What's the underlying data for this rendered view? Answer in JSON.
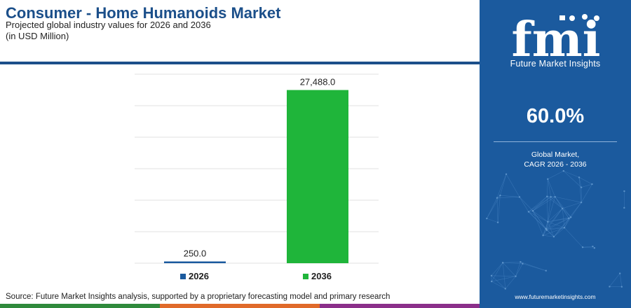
{
  "header": {
    "title": "Consumer - Home Humanoids Market",
    "subtitle_line1": "Projected global industry values for 2026 and 2036",
    "subtitle_line2": "(in USD Million)"
  },
  "chart_data": {
    "type": "bar",
    "categories": [
      "2026",
      "2036"
    ],
    "values": [
      250.0,
      27488.0
    ],
    "data_labels": [
      "250.0",
      "27,488.0"
    ],
    "ylim": [
      0,
      30000
    ],
    "grid": true,
    "legend_position": "bottom",
    "colors": [
      "#1b5a9e",
      "#1fb53a"
    ]
  },
  "source": "Source: Future Market Insights analysis, supported by a proprietary forecasting model and primary research",
  "panel": {
    "logo_text": "fmi",
    "brand": "Future Market Insights",
    "cagr_value": "60.0%",
    "cagr_label_line1": "Global Market,",
    "cagr_label_line2": "CAGR 2026 - 2036",
    "website": "www.futuremarketinsights.com",
    "background": "#1b5a9e"
  },
  "colors": {
    "title": "#1b4f8a",
    "bottom_bar": [
      "#2f8a3c",
      "#e06a2a",
      "#8b2f8a"
    ]
  }
}
